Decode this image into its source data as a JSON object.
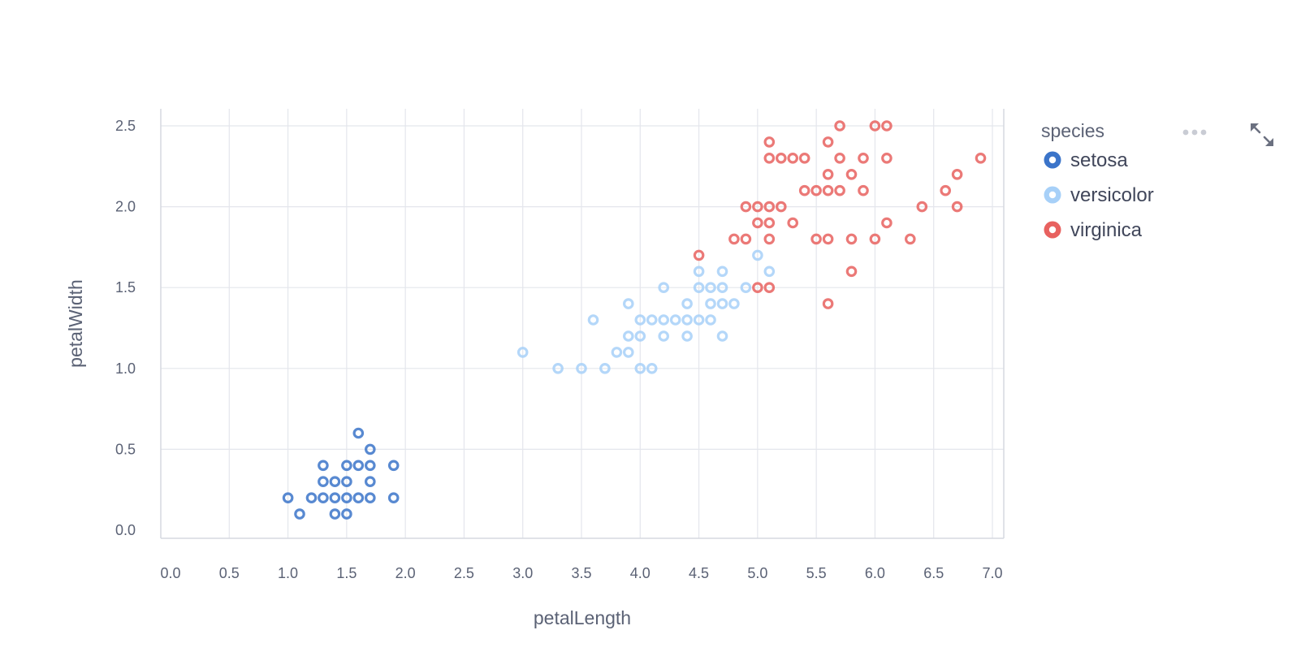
{
  "chart_data": {
    "type": "scatter",
    "xlabel": "petalLength",
    "ylabel": "petalWidth",
    "xlim": [
      0,
      7
    ],
    "ylim": [
      0,
      2.5
    ],
    "x_ticks": [
      "0.0",
      "0.5",
      "1.0",
      "1.5",
      "2.0",
      "2.5",
      "3.0",
      "3.5",
      "4.0",
      "4.5",
      "5.0",
      "5.5",
      "6.0",
      "6.5",
      "7.0"
    ],
    "y_ticks": [
      "0.0",
      "0.5",
      "1.0",
      "1.5",
      "2.0",
      "2.5"
    ],
    "grid": true,
    "legend": {
      "title": "species",
      "placement": "top-right"
    },
    "series": [
      {
        "name": "setosa",
        "color": "#3b74c9",
        "points": [
          [
            1.0,
            0.2
          ],
          [
            1.1,
            0.1
          ],
          [
            1.2,
            0.2
          ],
          [
            1.3,
            0.2
          ],
          [
            1.3,
            0.3
          ],
          [
            1.3,
            0.4
          ],
          [
            1.4,
            0.1
          ],
          [
            1.4,
            0.2
          ],
          [
            1.4,
            0.3
          ],
          [
            1.5,
            0.1
          ],
          [
            1.5,
            0.2
          ],
          [
            1.5,
            0.3
          ],
          [
            1.5,
            0.4
          ],
          [
            1.6,
            0.2
          ],
          [
            1.6,
            0.4
          ],
          [
            1.6,
            0.6
          ],
          [
            1.7,
            0.2
          ],
          [
            1.7,
            0.3
          ],
          [
            1.7,
            0.4
          ],
          [
            1.7,
            0.5
          ],
          [
            1.9,
            0.2
          ],
          [
            1.9,
            0.4
          ]
        ]
      },
      {
        "name": "versicolor",
        "color": "#a7d0f8",
        "points": [
          [
            3.0,
            1.1
          ],
          [
            3.3,
            1.0
          ],
          [
            3.5,
            1.0
          ],
          [
            3.6,
            1.3
          ],
          [
            3.7,
            1.0
          ],
          [
            3.8,
            1.1
          ],
          [
            3.9,
            1.1
          ],
          [
            3.9,
            1.2
          ],
          [
            3.9,
            1.4
          ],
          [
            4.0,
            1.0
          ],
          [
            4.0,
            1.2
          ],
          [
            4.0,
            1.3
          ],
          [
            4.1,
            1.0
          ],
          [
            4.1,
            1.3
          ],
          [
            4.2,
            1.2
          ],
          [
            4.2,
            1.3
          ],
          [
            4.2,
            1.5
          ],
          [
            4.3,
            1.3
          ],
          [
            4.4,
            1.2
          ],
          [
            4.4,
            1.3
          ],
          [
            4.4,
            1.4
          ],
          [
            4.5,
            1.3
          ],
          [
            4.5,
            1.5
          ],
          [
            4.5,
            1.6
          ],
          [
            4.6,
            1.3
          ],
          [
            4.6,
            1.4
          ],
          [
            4.6,
            1.5
          ],
          [
            4.7,
            1.2
          ],
          [
            4.7,
            1.4
          ],
          [
            4.7,
            1.5
          ],
          [
            4.7,
            1.6
          ],
          [
            4.8,
            1.4
          ],
          [
            4.9,
            1.5
          ],
          [
            5.0,
            1.7
          ],
          [
            5.1,
            1.6
          ]
        ]
      },
      {
        "name": "virginica",
        "color": "#e8615f",
        "points": [
          [
            4.5,
            1.7
          ],
          [
            4.8,
            1.8
          ],
          [
            4.9,
            1.8
          ],
          [
            4.9,
            2.0
          ],
          [
            5.0,
            1.5
          ],
          [
            5.0,
            1.9
          ],
          [
            5.0,
            2.0
          ],
          [
            5.1,
            1.5
          ],
          [
            5.1,
            1.8
          ],
          [
            5.1,
            1.9
          ],
          [
            5.1,
            2.0
          ],
          [
            5.1,
            2.3
          ],
          [
            5.1,
            2.4
          ],
          [
            5.2,
            2.0
          ],
          [
            5.2,
            2.3
          ],
          [
            5.3,
            1.9
          ],
          [
            5.3,
            2.3
          ],
          [
            5.4,
            2.1
          ],
          [
            5.4,
            2.3
          ],
          [
            5.5,
            1.8
          ],
          [
            5.5,
            2.1
          ],
          [
            5.6,
            1.4
          ],
          [
            5.6,
            1.8
          ],
          [
            5.6,
            2.1
          ],
          [
            5.6,
            2.2
          ],
          [
            5.6,
            2.4
          ],
          [
            5.7,
            2.1
          ],
          [
            5.7,
            2.3
          ],
          [
            5.7,
            2.5
          ],
          [
            5.8,
            1.6
          ],
          [
            5.8,
            1.8
          ],
          [
            5.8,
            2.2
          ],
          [
            5.9,
            2.1
          ],
          [
            5.9,
            2.3
          ],
          [
            6.0,
            1.8
          ],
          [
            6.0,
            2.5
          ],
          [
            6.1,
            1.9
          ],
          [
            6.1,
            2.3
          ],
          [
            6.1,
            2.5
          ],
          [
            6.3,
            1.8
          ],
          [
            6.4,
            2.0
          ],
          [
            6.6,
            2.1
          ],
          [
            6.7,
            2.0
          ],
          [
            6.7,
            2.2
          ],
          [
            6.9,
            2.3
          ]
        ]
      }
    ]
  },
  "toolbar": {
    "more_icon": "more-horizontal-icon",
    "expand_icon": "fullscreen-expand-icon"
  }
}
